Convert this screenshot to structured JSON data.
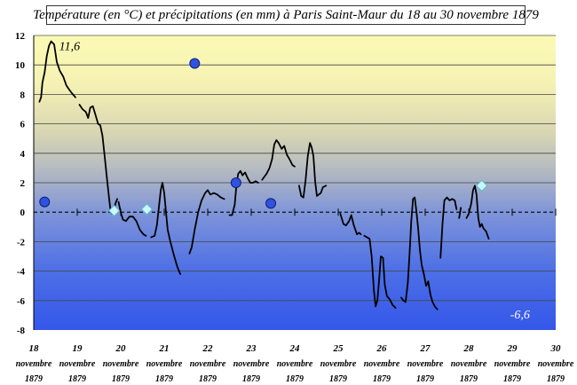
{
  "chart_data": {
    "type": "line",
    "title": "Température (en °C) et précipitations (en mm) à Paris Saint-Maur du 18 au 30 novembre 1879",
    "xlabel": "",
    "ylabel": "",
    "ylim": [
      -8,
      12
    ],
    "yticks": [
      "12",
      "10",
      "8",
      "6",
      "4",
      "2",
      "0",
      "-2",
      "-4",
      "-6",
      "-8"
    ],
    "xlim": [
      18,
      30
    ],
    "xtick_labels": [
      {
        "day": "18",
        "month": "novembre",
        "year": "1879"
      },
      {
        "day": "19",
        "month": "novembre",
        "year": "1879"
      },
      {
        "day": "20",
        "month": "novembre",
        "year": "1879"
      },
      {
        "day": "21",
        "month": "novembre",
        "year": "1879"
      },
      {
        "day": "22",
        "month": "novembre",
        "year": "1879"
      },
      {
        "day": "23",
        "month": "novembre",
        "year": "1879"
      },
      {
        "day": "24",
        "month": "novembre",
        "year": "1879"
      },
      {
        "day": "25",
        "month": "novembre",
        "year": "1879"
      },
      {
        "day": "26",
        "month": "novembre",
        "year": "1879"
      },
      {
        "day": "27",
        "month": "novembre",
        "year": "1879"
      },
      {
        "day": "28",
        "month": "novembre",
        "year": "1879"
      },
      {
        "day": "29",
        "month": "novembre",
        "year": "1879"
      },
      {
        "day": "30",
        "month": "novembre",
        "year": "1879"
      }
    ],
    "grid": true,
    "annotations": [
      {
        "text": "11,6",
        "x": 18.38,
        "y": 11.6
      },
      {
        "text": "-6,6",
        "x": 28.75,
        "y": -6.6
      }
    ],
    "temperature_segments": [
      [
        [
          18.13,
          7.5
        ],
        [
          18.17,
          7.8
        ],
        [
          18.2,
          8.8
        ],
        [
          18.25,
          9.5
        ],
        [
          18.3,
          10.6
        ],
        [
          18.35,
          11.3
        ],
        [
          18.4,
          11.6
        ],
        [
          18.47,
          11.4
        ],
        [
          18.53,
          10.2
        ],
        [
          18.6,
          9.6
        ],
        [
          18.68,
          9.2
        ],
        [
          18.75,
          8.6
        ],
        [
          18.82,
          8.3
        ],
        [
          18.9,
          8.0
        ],
        [
          18.96,
          7.8
        ]
      ],
      [
        [
          19.05,
          7.3
        ],
        [
          19.12,
          7.0
        ],
        [
          19.2,
          6.8
        ],
        [
          19.25,
          6.4
        ],
        [
          19.3,
          7.1
        ],
        [
          19.36,
          7.2
        ],
        [
          19.42,
          6.6
        ],
        [
          19.48,
          6.0
        ],
        [
          19.53,
          5.9
        ],
        [
          19.58,
          5.2
        ],
        [
          19.63,
          3.8
        ],
        [
          19.68,
          2.4
        ],
        [
          19.73,
          1.0
        ],
        [
          19.77,
          0.0
        ],
        [
          19.8,
          -0.1
        ],
        [
          19.85,
          0.2
        ],
        [
          19.88,
          0.6
        ],
        [
          19.92,
          0.9
        ]
      ],
      [
        [
          19.95,
          0.7
        ],
        [
          20.0,
          0.0
        ],
        [
          20.05,
          -0.5
        ],
        [
          20.12,
          -0.6
        ],
        [
          20.2,
          -0.3
        ],
        [
          20.28,
          -0.3
        ],
        [
          20.36,
          -0.6
        ],
        [
          20.44,
          -1.2
        ],
        [
          20.52,
          -1.5
        ],
        [
          20.58,
          -1.6
        ]
      ],
      [
        [
          20.7,
          -1.7
        ],
        [
          20.78,
          -1.6
        ],
        [
          20.83,
          -0.9
        ],
        [
          20.88,
          0.4
        ],
        [
          20.92,
          1.5
        ],
        [
          20.96,
          2.0
        ],
        [
          21.0,
          1.3
        ],
        [
          21.04,
          0.0
        ],
        [
          21.08,
          -1.2
        ],
        [
          21.14,
          -2.0
        ],
        [
          21.22,
          -2.9
        ],
        [
          21.3,
          -3.7
        ],
        [
          21.37,
          -4.2
        ]
      ],
      [
        [
          21.58,
          -2.8
        ],
        [
          21.63,
          -2.4
        ],
        [
          21.7,
          -1.2
        ],
        [
          21.78,
          0.0
        ],
        [
          21.86,
          0.8
        ],
        [
          21.94,
          1.3
        ],
        [
          22.0,
          1.5
        ],
        [
          22.06,
          1.2
        ],
        [
          22.14,
          1.3
        ],
        [
          22.22,
          1.2
        ],
        [
          22.3,
          1.0
        ],
        [
          22.38,
          0.9
        ]
      ],
      [
        [
          22.5,
          -0.2
        ],
        [
          22.56,
          -0.2
        ],
        [
          22.62,
          0.5
        ],
        [
          22.66,
          1.8
        ],
        [
          22.7,
          2.6
        ],
        [
          22.75,
          2.8
        ],
        [
          22.8,
          2.5
        ],
        [
          22.86,
          2.7
        ],
        [
          22.92,
          2.3
        ],
        [
          22.98,
          2.0
        ],
        [
          23.04,
          2.0
        ],
        [
          23.1,
          2.1
        ],
        [
          23.16,
          2.0
        ]
      ],
      [
        [
          23.25,
          2.2
        ],
        [
          23.3,
          2.4
        ],
        [
          23.35,
          2.6
        ],
        [
          23.42,
          3.0
        ],
        [
          23.48,
          3.6
        ],
        [
          23.53,
          4.6
        ],
        [
          23.58,
          4.9
        ],
        [
          23.63,
          4.7
        ],
        [
          23.7,
          4.3
        ],
        [
          23.76,
          4.5
        ],
        [
          23.82,
          3.9
        ],
        [
          23.88,
          3.6
        ],
        [
          23.95,
          3.2
        ],
        [
          24.0,
          3.1
        ]
      ],
      [
        [
          24.1,
          1.8
        ],
        [
          24.15,
          1.1
        ],
        [
          24.2,
          1.0
        ],
        [
          24.25,
          2.2
        ],
        [
          24.3,
          3.8
        ],
        [
          24.35,
          4.7
        ],
        [
          24.39,
          4.4
        ],
        [
          24.43,
          3.8
        ],
        [
          24.47,
          2.1
        ],
        [
          24.51,
          1.1
        ],
        [
          24.55,
          1.2
        ],
        [
          24.6,
          1.3
        ],
        [
          24.65,
          1.7
        ],
        [
          24.72,
          1.8
        ]
      ],
      [
        [
          25.05,
          -0.1
        ],
        [
          25.12,
          -0.8
        ],
        [
          25.18,
          -0.9
        ],
        [
          25.25,
          -0.6
        ],
        [
          25.3,
          -0.2
        ],
        [
          25.36,
          -0.9
        ],
        [
          25.43,
          -1.5
        ],
        [
          25.48,
          -1.4
        ],
        [
          25.52,
          -1.5
        ]
      ],
      [
        [
          25.6,
          -1.6
        ],
        [
          25.66,
          -1.7
        ],
        [
          25.72,
          -1.8
        ],
        [
          25.77,
          -3.0
        ],
        [
          25.82,
          -5.3
        ],
        [
          25.86,
          -6.4
        ],
        [
          25.9,
          -6.0
        ],
        [
          25.94,
          -4.6
        ],
        [
          25.98,
          -3.0
        ],
        [
          26.03,
          -3.1
        ],
        [
          26.07,
          -4.9
        ],
        [
          26.12,
          -5.7
        ],
        [
          26.18,
          -5.9
        ],
        [
          26.25,
          -6.3
        ],
        [
          26.32,
          -6.5
        ]
      ],
      [
        [
          26.45,
          -5.8
        ],
        [
          26.5,
          -6.0
        ],
        [
          26.55,
          -6.1
        ],
        [
          26.6,
          -4.8
        ],
        [
          26.64,
          -2.8
        ],
        [
          26.68,
          -0.6
        ],
        [
          26.72,
          0.9
        ],
        [
          26.76,
          1.0
        ],
        [
          26.8,
          0.0
        ],
        [
          26.84,
          -1.2
        ],
        [
          26.88,
          -2.6
        ],
        [
          26.92,
          -3.6
        ],
        [
          26.97,
          -4.2
        ],
        [
          27.02,
          -5.0
        ],
        [
          27.07,
          -4.7
        ],
        [
          27.12,
          -5.6
        ],
        [
          27.17,
          -6.1
        ],
        [
          27.22,
          -6.4
        ],
        [
          27.28,
          -6.6
        ]
      ],
      [
        [
          27.35,
          -3.1
        ],
        [
          27.4,
          -0.7
        ],
        [
          27.44,
          0.8
        ],
        [
          27.5,
          1.0
        ],
        [
          27.56,
          0.8
        ],
        [
          27.62,
          0.9
        ],
        [
          27.68,
          0.8
        ],
        [
          27.72,
          0.2
        ]
      ],
      [
        [
          27.78,
          -0.4
        ],
        [
          27.82,
          0.3
        ]
      ],
      [
        [
          27.95,
          -0.4
        ],
        [
          28.0,
          -0.1
        ],
        [
          28.06,
          0.6
        ],
        [
          28.1,
          1.5
        ],
        [
          28.14,
          1.8
        ],
        [
          28.18,
          1.2
        ],
        [
          28.22,
          -0.4
        ],
        [
          28.26,
          -1.0
        ],
        [
          28.3,
          -0.8
        ],
        [
          28.34,
          -1.1
        ],
        [
          28.4,
          -1.3
        ],
        [
          28.46,
          -1.8
        ]
      ]
    ],
    "precipitation_circles": [
      {
        "x": 18.25,
        "y": 0.7
      },
      {
        "x": 21.7,
        "y": 10.1
      },
      {
        "x": 22.65,
        "y": 2.0
      },
      {
        "x": 23.45,
        "y": 0.6
      }
    ],
    "diamond_markers": [
      {
        "x": 19.85,
        "y": 0.1
      },
      {
        "x": 20.6,
        "y": 0.2
      },
      {
        "x": 28.3,
        "y": 1.8
      }
    ]
  }
}
